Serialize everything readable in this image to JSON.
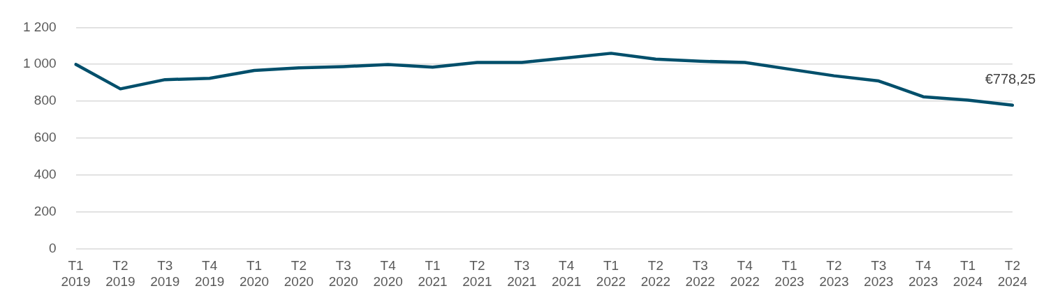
{
  "chart_data": {
    "type": "line",
    "categories": [
      "T1 2019",
      "T2 2019",
      "T3 2019",
      "T4 2019",
      "T1 2020",
      "T2 2020",
      "T3 2020",
      "T4 2020",
      "T1 2021",
      "T2 2021",
      "T3 2021",
      "T4 2021",
      "T1 2022",
      "T2 2022",
      "T3 2022",
      "T4 2022",
      "T1 2023",
      "T2 2023",
      "T3 2023",
      "T4 2023",
      "T1 2024",
      "T2 2024"
    ],
    "series": [
      {
        "color": "#004f6b",
        "values": [
          1000,
          867,
          917,
          924,
          967,
          981,
          988,
          999,
          985,
          1010,
          1010,
          1035,
          1060,
          1028,
          1017,
          1010,
          974,
          938,
          910,
          824,
          806,
          778.25
        ],
        "value_labels": [
          null,
          null,
          null,
          null,
          null,
          null,
          null,
          null,
          null,
          null,
          null,
          null,
          null,
          null,
          null,
          null,
          null,
          null,
          null,
          null,
          null,
          "€778,25"
        ]
      }
    ],
    "ylim": [
      0,
      1200
    ],
    "yticks": [
      0,
      200,
      400,
      600,
      800,
      {
        "value": 1000,
        "label": "1 000"
      },
      {
        "value": 1200,
        "label": "1 200"
      }
    ],
    "grid": "y",
    "marker": "none",
    "line_style": "solid",
    "legend": false
  }
}
